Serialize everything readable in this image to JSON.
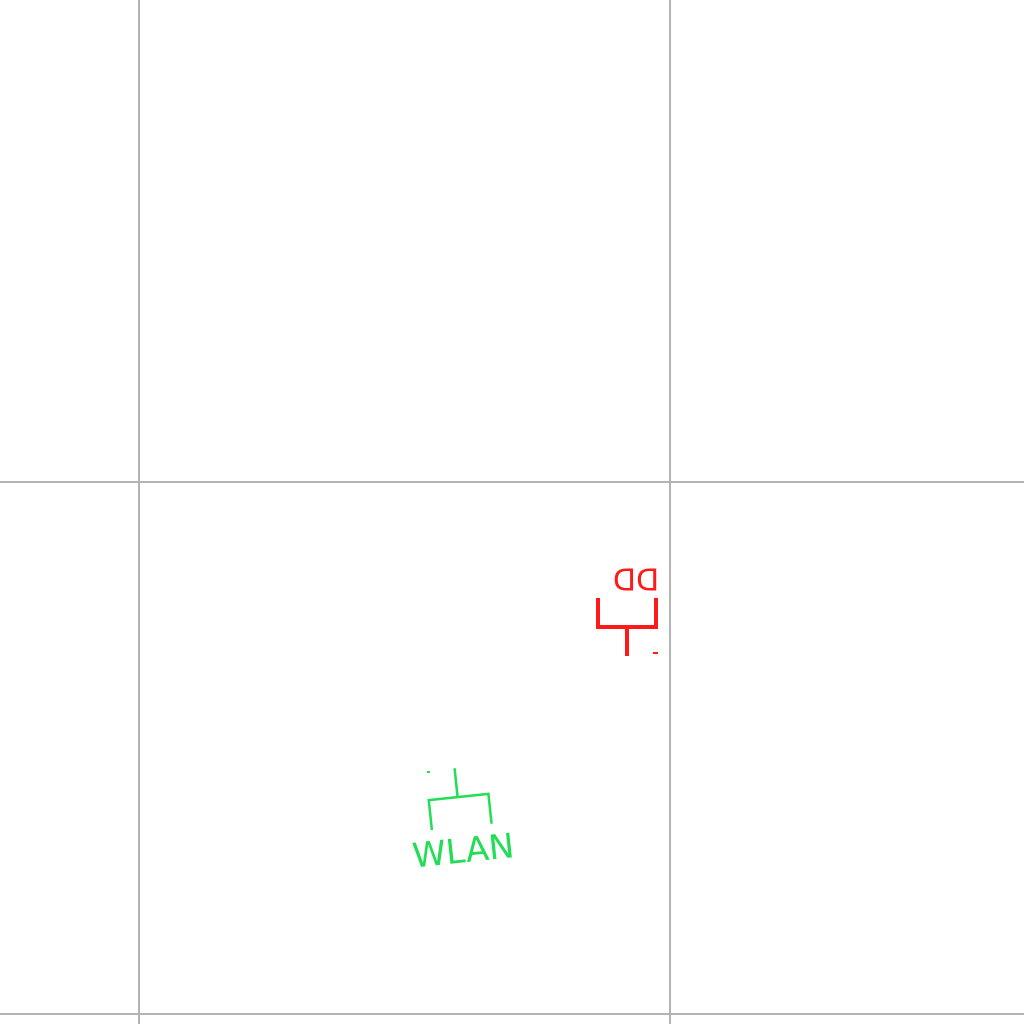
{
  "colors": {
    "background": "#ffffff",
    "grid": "#b3b3b3",
    "red_symbol": "#ff1a1a",
    "green_symbol": "#22dd55"
  },
  "symbols": {
    "red_symbol": {
      "icon": "antenna-outlet-icon",
      "label": "DD"
    },
    "green_symbol": {
      "icon": "wlan-access-point-icon",
      "label": "WLAN"
    }
  }
}
